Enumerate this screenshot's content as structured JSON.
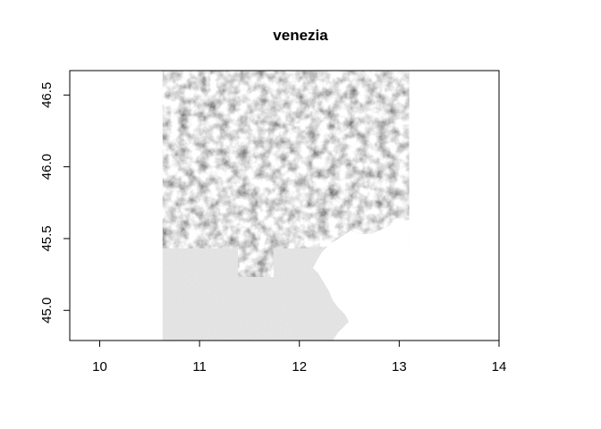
{
  "title": "venezia",
  "map": {
    "type": "raster-hillshade",
    "colors": {
      "relief_light": "#e6e6e6",
      "relief_shade": "#6a6a6a",
      "flat": "#c3c3c3",
      "sea": "#ffffff",
      "frame": "#000000"
    },
    "raster_extent": {
      "lon": [
        10.63,
        13.1
      ],
      "lat": [
        44.79,
        46.67
      ]
    },
    "xlim": [
      9.7,
      14.0
    ],
    "ylim": [
      44.79,
      46.67
    ],
    "x_ticks": [
      {
        "value": 10,
        "label": "10"
      },
      {
        "value": 11,
        "label": "11"
      },
      {
        "value": 12,
        "label": "12"
      },
      {
        "value": 13,
        "label": "13"
      },
      {
        "value": 14,
        "label": "14"
      }
    ],
    "y_ticks": [
      {
        "value": 45.0,
        "label": "45.0"
      },
      {
        "value": 45.5,
        "label": "45.5"
      },
      {
        "value": 46.0,
        "label": "46.0"
      },
      {
        "value": 46.5,
        "label": "46.5"
      }
    ]
  }
}
